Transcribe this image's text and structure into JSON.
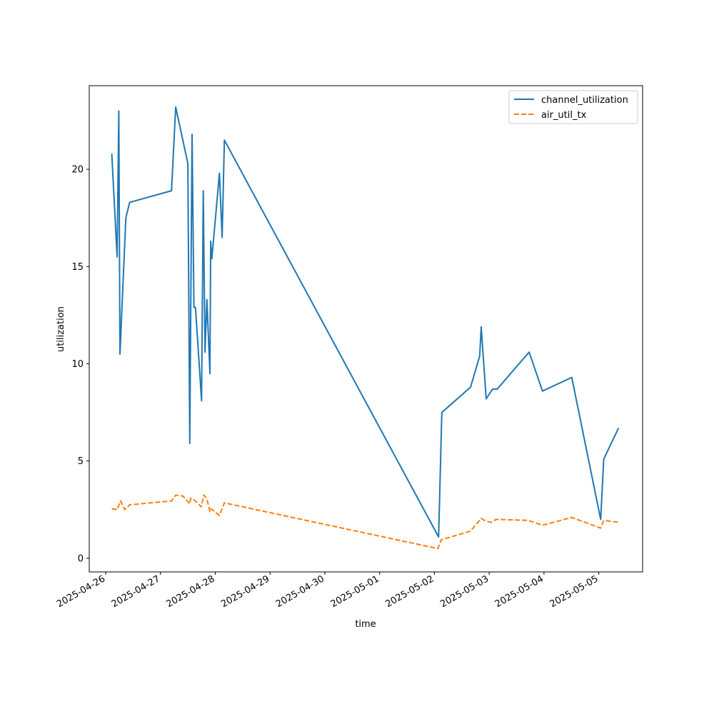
{
  "chart_data": {
    "type": "line",
    "title": "",
    "xlabel": "time",
    "ylabel": "utilization",
    "xlim": [
      "2025-04-25T16:48",
      "2025-05-05T19:12"
    ],
    "ylim": [
      -0.7,
      24.3
    ],
    "yticks": [
      0,
      5,
      10,
      15,
      20
    ],
    "xticks": [
      "2025-04-26",
      "2025-04-27",
      "2025-04-28",
      "2025-04-29",
      "2025-04-30",
      "2025-05-01",
      "2025-05-02",
      "2025-05-03",
      "2025-05-04",
      "2025-05-05"
    ],
    "legend_position": "top-right",
    "grid": false,
    "series": [
      {
        "name": "channel_utilization",
        "color": "#1f77b4",
        "dash": "solid",
        "points": [
          [
            "2025-04-26T02:40",
            20.8
          ],
          [
            "2025-04-26T05:00",
            15.5
          ],
          [
            "2025-04-26T05:45",
            23.0
          ],
          [
            "2025-04-26T06:15",
            10.5
          ],
          [
            "2025-04-26T08:50",
            17.5
          ],
          [
            "2025-04-26T10:30",
            18.3
          ],
          [
            "2025-04-27T04:50",
            18.9
          ],
          [
            "2025-04-27T06:40",
            23.2
          ],
          [
            "2025-04-27T12:00",
            20.3
          ],
          [
            "2025-04-27T12:50",
            5.9
          ],
          [
            "2025-04-27T13:50",
            21.8
          ],
          [
            "2025-04-27T14:40",
            12.9
          ],
          [
            "2025-04-27T15:20",
            12.9
          ],
          [
            "2025-04-27T18:00",
            8.1
          ],
          [
            "2025-04-27T18:45",
            18.9
          ],
          [
            "2025-04-27T19:30",
            10.6
          ],
          [
            "2025-04-27T20:20",
            13.3
          ],
          [
            "2025-04-27T21:40",
            9.5
          ],
          [
            "2025-04-27T22:00",
            16.3
          ],
          [
            "2025-04-27T22:30",
            15.4
          ],
          [
            "2025-04-28T01:50",
            19.8
          ],
          [
            "2025-04-28T03:00",
            16.5
          ],
          [
            "2025-04-28T04:00",
            21.5
          ],
          [
            "2025-05-02T01:50",
            1.1
          ],
          [
            "2025-05-02T03:15",
            7.5
          ],
          [
            "2025-05-02T15:50",
            8.8
          ],
          [
            "2025-05-02T19:50",
            10.4
          ],
          [
            "2025-05-02T20:30",
            11.9
          ],
          [
            "2025-05-02T22:40",
            8.2
          ],
          [
            "2025-05-03T01:30",
            8.7
          ],
          [
            "2025-05-03T03:30",
            8.7
          ],
          [
            "2025-05-03T17:30",
            10.6
          ],
          [
            "2025-05-03T23:20",
            8.6
          ],
          [
            "2025-05-04T12:10",
            9.3
          ],
          [
            "2025-05-05T00:50",
            2.0
          ],
          [
            "2025-05-05T02:10",
            5.1
          ],
          [
            "2025-05-05T08:40",
            6.7
          ]
        ]
      },
      {
        "name": "air_util_tx",
        "color": "#ff7f0e",
        "dash": "dashed",
        "points": [
          [
            "2025-04-26T02:40",
            2.55
          ],
          [
            "2025-04-26T05:00",
            2.5
          ],
          [
            "2025-04-26T06:30",
            2.95
          ],
          [
            "2025-04-26T08:20",
            2.5
          ],
          [
            "2025-04-26T10:30",
            2.75
          ],
          [
            "2025-04-27T04:50",
            2.95
          ],
          [
            "2025-04-27T06:40",
            3.25
          ],
          [
            "2025-04-27T09:50",
            3.2
          ],
          [
            "2025-04-27T12:50",
            2.8
          ],
          [
            "2025-04-27T13:20",
            3.1
          ],
          [
            "2025-04-27T15:50",
            2.9
          ],
          [
            "2025-04-27T17:50",
            2.65
          ],
          [
            "2025-04-27T19:00",
            3.25
          ],
          [
            "2025-04-27T20:20",
            3.05
          ],
          [
            "2025-04-27T21:40",
            2.4
          ],
          [
            "2025-04-27T22:10",
            2.55
          ],
          [
            "2025-04-28T01:50",
            2.2
          ],
          [
            "2025-04-28T04:00",
            2.85
          ],
          [
            "2025-05-02T01:30",
            0.5
          ],
          [
            "2025-05-02T03:00",
            0.95
          ],
          [
            "2025-05-02T15:50",
            1.4
          ],
          [
            "2025-05-02T20:30",
            2.05
          ],
          [
            "2025-05-02T22:40",
            1.9
          ],
          [
            "2025-05-03T01:00",
            1.85
          ],
          [
            "2025-05-03T03:00",
            2.0
          ],
          [
            "2025-05-03T17:00",
            1.95
          ],
          [
            "2025-05-03T23:20",
            1.7
          ],
          [
            "2025-05-04T12:10",
            2.1
          ],
          [
            "2025-05-05T00:50",
            1.55
          ],
          [
            "2025-05-05T02:10",
            1.95
          ],
          [
            "2025-05-05T08:40",
            1.85
          ]
        ]
      }
    ]
  }
}
